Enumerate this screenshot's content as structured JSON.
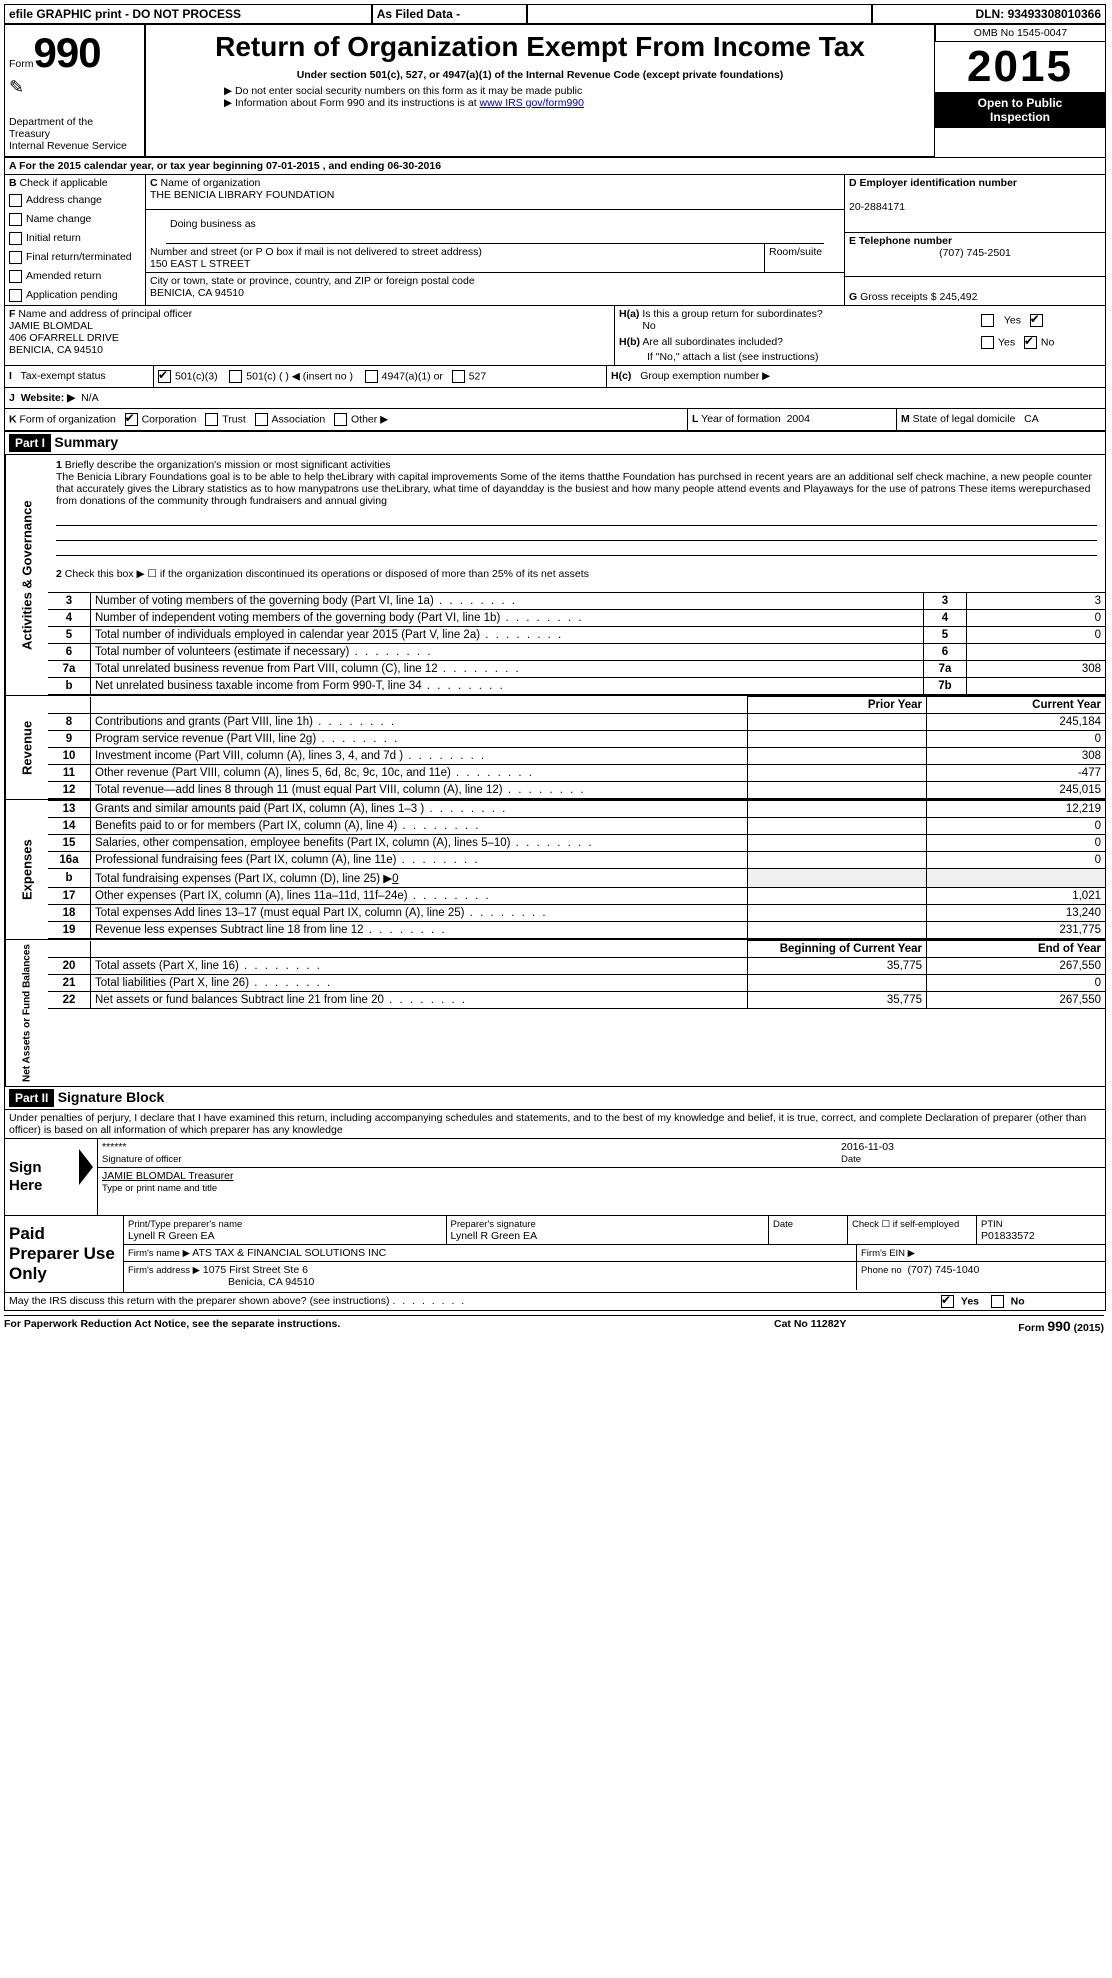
{
  "topbar": {
    "efile": "efile GRAPHIC print - DO NOT PROCESS",
    "asfiled": "As Filed Data -",
    "dln_label": "DLN:",
    "dln": "93493308010366"
  },
  "header": {
    "form_label": "Form",
    "form_no": "990",
    "dept1": "Department of the",
    "dept2": "Treasury",
    "dept3": "Internal Revenue Service",
    "title": "Return of Organization Exempt From Income Tax",
    "sub1": "Under section 501(c), 527, or 4947(a)(1) of the Internal Revenue Code (except private foundations)",
    "sub2": "▶ Do not enter social security numbers on this form as it may be made public",
    "sub3_prefix": "▶ Information about Form 990 and its instructions is at ",
    "sub3_link": "www IRS gov/form990",
    "omb": "OMB No 1545-0047",
    "year": "2015",
    "open1": "Open to Public",
    "open2": "Inspection"
  },
  "A": {
    "label": "A  For the 2015 calendar year, or tax year beginning ",
    "begin": "07-01-2015",
    "mid": " , and ending ",
    "end": "06-30-2016"
  },
  "B": {
    "label": "B",
    "check": "Check if applicable",
    "opts": [
      "Address change",
      "Name change",
      "Initial return",
      "Final return/terminated",
      "Amended return",
      "Application pending"
    ]
  },
  "C": {
    "label": "C",
    "name_label": "Name of organization",
    "name": "THE BENICIA LIBRARY FOUNDATION",
    "dba_label": "Doing business as",
    "dba": "",
    "street_label": "Number and street (or P O  box if mail is not delivered to street address)",
    "room_label": "Room/suite",
    "street": "150 EAST L STREET",
    "city_label": "City or town, state or province, country, and ZIP or foreign postal code",
    "city": "BENICIA, CA  94510"
  },
  "D": {
    "label": "D Employer identification number",
    "ein": "20-2884171"
  },
  "E": {
    "label": "E Telephone number",
    "phone": "(707) 745-2501"
  },
  "G": {
    "label": "G",
    "text": "Gross receipts $",
    "val": "245,492"
  },
  "F": {
    "label": "F",
    "text": "Name and address of principal officer",
    "name": "JAMIE BLOMDAL",
    "addr1": "406 OFARRELL DRIVE",
    "addr2": "BENICIA, CA  94510"
  },
  "H": {
    "a_label": "H(a)",
    "a_text": "Is this a group return for subordinates?",
    "a_no": "No",
    "b_label": "H(b)",
    "b_text": "Are all subordinates included?",
    "b_note": "If \"No,\" attach a list  (see instructions)",
    "c_label": "H(c)",
    "c_text": "Group exemption number ▶",
    "yes": "Yes",
    "no": "No"
  },
  "I": {
    "label": "I",
    "text": "Tax-exempt status",
    "opts": [
      "501(c)(3)",
      "501(c) (   ) ◀ (insert no )",
      "4947(a)(1) or",
      "527"
    ]
  },
  "J": {
    "label": "J",
    "text": "Website: ▶",
    "val": "N/A"
  },
  "K": {
    "label": "K",
    "text": "Form of organization",
    "opts": [
      "Corporation",
      "Trust",
      "Association",
      "Other ▶"
    ]
  },
  "L": {
    "label": "L",
    "text": "Year of formation",
    "val": "2004"
  },
  "M": {
    "label": "M",
    "text": "State of legal domicile",
    "val": "CA"
  },
  "part1": {
    "label": "Part I",
    "title": "Summary",
    "line1_label": "1",
    "line1_text": "Briefly describe the organization's mission or most significant activities",
    "line1_body": "The Benicia Library Foundations goal is to be able to help theLibrary with capital improvements  Some of the items thatthe Foundation has purchsed in recent years are  an additional self check machine, a new people counter that accurately gives the Library statistics as to how manypatrons use theLibrary, what time of dayandday is the busiest and how many people attend events and Playaways for the use of patrons These items werepurchased from donations of the community through fundraisers and annual giving",
    "line2_label": "2",
    "line2_text": "Check this box ▶ ☐ if the organization discontinued its operations or disposed of more than 25% of its net assets",
    "rows_ag": [
      {
        "n": "3",
        "t": "Number of voting members of the governing body (Part VI, line 1a)",
        "rn": "3",
        "v": "3"
      },
      {
        "n": "4",
        "t": "Number of independent voting members of the governing body (Part VI, line 1b)",
        "rn": "4",
        "v": "0"
      },
      {
        "n": "5",
        "t": "Total number of individuals employed in calendar year 2015 (Part V, line 2a)",
        "rn": "5",
        "v": "0"
      },
      {
        "n": "6",
        "t": "Total number of volunteers (estimate if necessary)",
        "rn": "6",
        "v": ""
      },
      {
        "n": "7a",
        "t": "Total unrelated business revenue from Part VIII, column (C), line 12",
        "rn": "7a",
        "v": "308"
      },
      {
        "n": "b",
        "t": "Net unrelated business taxable income from Form 990-T, line 34",
        "rn": "7b",
        "v": ""
      }
    ],
    "prior_hdr": "Prior Year",
    "curr_hdr": "Current Year",
    "rows_rev": [
      {
        "n": "8",
        "t": "Contributions and grants (Part VIII, line 1h)",
        "p": "",
        "c": "245,184"
      },
      {
        "n": "9",
        "t": "Program service revenue (Part VIII, line 2g)",
        "p": "",
        "c": "0"
      },
      {
        "n": "10",
        "t": "Investment income (Part VIII, column (A), lines 3, 4, and 7d )",
        "p": "",
        "c": "308"
      },
      {
        "n": "11",
        "t": "Other revenue (Part VIII, column (A), lines 5, 6d, 8c, 9c, 10c, and 11e)",
        "p": "",
        "c": "-477"
      },
      {
        "n": "12",
        "t": "Total revenue—add lines 8 through 11 (must equal Part VIII, column (A), line 12)",
        "p": "",
        "c": "245,015"
      }
    ],
    "rows_exp": [
      {
        "n": "13",
        "t": "Grants and similar amounts paid (Part IX, column (A), lines 1–3 )",
        "p": "",
        "c": "12,219"
      },
      {
        "n": "14",
        "t": "Benefits paid to or for members (Part IX, column (A), line 4)",
        "p": "",
        "c": "0"
      },
      {
        "n": "15",
        "t": "Salaries, other compensation, employee benefits (Part IX, column (A), lines 5–10)",
        "p": "",
        "c": "0"
      },
      {
        "n": "16a",
        "t": "Professional fundraising fees (Part IX, column (A), line 11e)",
        "p": "",
        "c": "0"
      },
      {
        "n": "b",
        "t": "Total fundraising expenses (Part IX, column (D), line 25) ▶",
        "p": "",
        "c": "",
        "extra": "0"
      },
      {
        "n": "17",
        "t": "Other expenses (Part IX, column (A), lines 11a–11d, 11f–24e)",
        "p": "",
        "c": "1,021"
      },
      {
        "n": "18",
        "t": "Total expenses  Add lines 13–17 (must equal Part IX, column (A), line 25)",
        "p": "",
        "c": "13,240"
      },
      {
        "n": "19",
        "t": "Revenue less expenses  Subtract line 18 from line 12",
        "p": "",
        "c": "231,775"
      }
    ],
    "begin_hdr": "Beginning of Current Year",
    "end_hdr": "End of Year",
    "rows_net": [
      {
        "n": "20",
        "t": "Total assets (Part X, line 16)",
        "p": "35,775",
        "c": "267,550"
      },
      {
        "n": "21",
        "t": "Total liabilities (Part X, line 26)",
        "p": "",
        "c": "0"
      },
      {
        "n": "22",
        "t": "Net assets or fund balances  Subtract line 21 from line 20",
        "p": "35,775",
        "c": "267,550"
      }
    ],
    "side_ag": "Activities & Governance",
    "side_rev": "Revenue",
    "side_exp": "Expenses",
    "side_net": "Net Assets or Fund Balances"
  },
  "part2": {
    "label": "Part II",
    "title": "Signature Block",
    "perjury": "Under penalties of perjury, I declare that I have examined this return, including accompanying schedules and statements, and to the best of my knowledge and belief, it is true, correct, and complete  Declaration of preparer (other than officer) is based on all information of which preparer has any knowledge",
    "sign_here": "Sign Here",
    "sig_stars": "******",
    "sig_officer": "Signature of officer",
    "sig_date": "2016-11-03",
    "date_label": "Date",
    "sig_name": "JAMIE BLOMDAL Treasurer",
    "sig_name_label": "Type or print name and title",
    "paid": "Paid Preparer Use Only",
    "prep_name_label": "Print/Type preparer's name",
    "prep_name": "Lynell R Green EA",
    "prep_sig_label": "Preparer's signature",
    "prep_sig": "Lynell R Green EA",
    "prep_date_label": "Date",
    "check_self": "Check ☐ if self-employed",
    "ptin_label": "PTIN",
    "ptin": "P01833572",
    "firm_name_label": "Firm's name    ▶",
    "firm_name": "ATS TAX & FINANCIAL SOLUTIONS INC",
    "firm_ein_label": "Firm's EIN ▶",
    "firm_addr_label": "Firm's address ▶",
    "firm_addr": "1075 First Street Ste 6",
    "firm_city": "Benicia, CA  94510",
    "phone_label": "Phone no",
    "phone": "(707) 745-1040",
    "discuss": "May the IRS discuss this return with the preparer shown above? (see instructions)",
    "yes": "Yes",
    "no": "No"
  },
  "footer": {
    "left": "For Paperwork Reduction Act Notice, see the separate instructions.",
    "mid": "Cat No 11282Y",
    "right_form": "Form",
    "right_990": "990",
    "right_year": "(2015)"
  }
}
